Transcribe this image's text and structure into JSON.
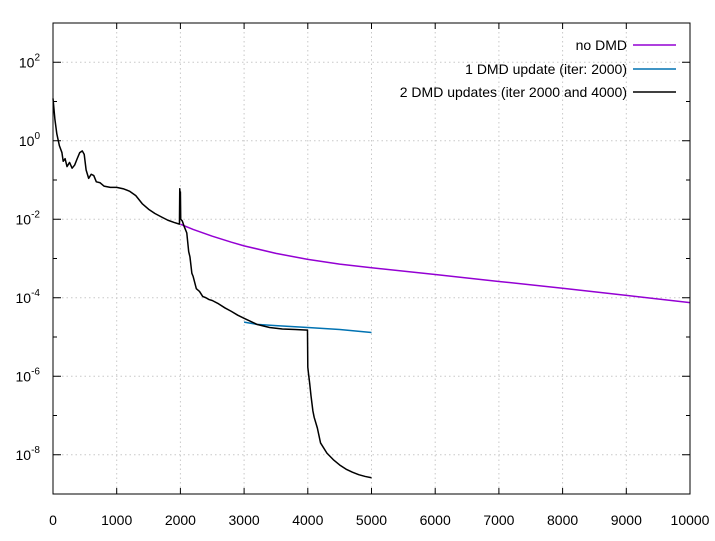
{
  "chart_data": {
    "type": "line",
    "title": "",
    "xlabel": "",
    "ylabel": "",
    "xlim": [
      0,
      10000
    ],
    "ylim": [
      1e-09,
      1000
    ],
    "yscale": "log",
    "grid": true,
    "legend_position": "top-right",
    "x_ticks": [
      {
        "value": 0,
        "label": "0"
      },
      {
        "value": 1000,
        "label": "1000"
      },
      {
        "value": 2000,
        "label": "2000"
      },
      {
        "value": 3000,
        "label": "3000"
      },
      {
        "value": 4000,
        "label": "4000"
      },
      {
        "value": 5000,
        "label": "5000"
      },
      {
        "value": 6000,
        "label": "6000"
      },
      {
        "value": 7000,
        "label": "7000"
      },
      {
        "value": 8000,
        "label": "8000"
      },
      {
        "value": 9000,
        "label": "9000"
      },
      {
        "value": 10000,
        "label": "10000"
      }
    ],
    "y_ticks": [
      {
        "value": 1e-08,
        "base": "10",
        "exp": "-8"
      },
      {
        "value": 1e-06,
        "base": "10",
        "exp": "-6"
      },
      {
        "value": 0.0001,
        "base": "10",
        "exp": "-4"
      },
      {
        "value": 0.01,
        "base": "10",
        "exp": "-2"
      },
      {
        "value": 1,
        "base": "10",
        "exp": "0"
      },
      {
        "value": 100,
        "base": "10",
        "exp": "2"
      }
    ],
    "series": [
      {
        "name": "no DMD",
        "color": "#9400d3",
        "points": [
          [
            2000,
            0.0075
          ],
          [
            2200,
            0.0055
          ],
          [
            2500,
            0.0037
          ],
          [
            2800,
            0.0026
          ],
          [
            3000,
            0.0021
          ],
          [
            3500,
            0.00135
          ],
          [
            4000,
            0.00095
          ],
          [
            4500,
            0.00072
          ],
          [
            5000,
            0.00058
          ],
          [
            6000,
            0.00039
          ],
          [
            7000,
            0.00026
          ],
          [
            8000,
            0.000175
          ],
          [
            9000,
            0.000115
          ],
          [
            10000,
            7.5e-05
          ]
        ]
      },
      {
        "name": "1 DMD update (iter: 2000)",
        "color": "#0072b2",
        "points": [
          [
            3000,
            2.4e-05
          ],
          [
            3200,
            2.1e-05
          ],
          [
            3500,
            1.95e-05
          ],
          [
            4000,
            1.75e-05
          ],
          [
            4500,
            1.55e-05
          ],
          [
            5000,
            1.3e-05
          ]
        ]
      },
      {
        "name": "2 DMD updates (iter 2000 and 4000)",
        "color": "#000000",
        "points": [
          [
            0,
            12
          ],
          [
            30,
            3.5
          ],
          [
            60,
            1.5
          ],
          [
            100,
            0.75
          ],
          [
            140,
            0.5
          ],
          [
            160,
            0.3
          ],
          [
            190,
            0.35
          ],
          [
            220,
            0.22
          ],
          [
            260,
            0.28
          ],
          [
            300,
            0.2
          ],
          [
            340,
            0.24
          ],
          [
            380,
            0.35
          ],
          [
            420,
            0.5
          ],
          [
            460,
            0.55
          ],
          [
            490,
            0.45
          ],
          [
            520,
            0.18
          ],
          [
            560,
            0.11
          ],
          [
            600,
            0.14
          ],
          [
            640,
            0.13
          ],
          [
            680,
            0.09
          ],
          [
            740,
            0.085
          ],
          [
            800,
            0.07
          ],
          [
            900,
            0.065
          ],
          [
            1000,
            0.065
          ],
          [
            1100,
            0.06
          ],
          [
            1200,
            0.052
          ],
          [
            1300,
            0.04
          ],
          [
            1400,
            0.025
          ],
          [
            1500,
            0.018
          ],
          [
            1600,
            0.014
          ],
          [
            1700,
            0.0115
          ],
          [
            1800,
            0.0095
          ],
          [
            1900,
            0.0083
          ],
          [
            1985,
            0.0075
          ],
          [
            1990,
            0.06
          ],
          [
            1995,
            0.03
          ],
          [
            2000,
            0.05
          ],
          [
            2005,
            0.01
          ],
          [
            2030,
            0.009
          ],
          [
            2060,
            0.0065
          ],
          [
            2100,
            0.0045
          ],
          [
            2130,
            0.0015
          ],
          [
            2150,
            0.0011
          ],
          [
            2180,
            0.00042
          ],
          [
            2200,
            0.00035
          ],
          [
            2250,
            0.00017
          ],
          [
            2300,
            0.000145
          ],
          [
            2350,
            0.000108
          ],
          [
            2400,
            0.0001
          ],
          [
            2450,
            9e-05
          ],
          [
            2500,
            8.5e-05
          ],
          [
            2600,
            7e-05
          ],
          [
            2700,
            5.5e-05
          ],
          [
            2800,
            4.5e-05
          ],
          [
            2900,
            3.6e-05
          ],
          [
            3000,
            3e-05
          ],
          [
            3200,
            2.1e-05
          ],
          [
            3400,
            1.75e-05
          ],
          [
            3600,
            1.6e-05
          ],
          [
            3800,
            1.55e-05
          ],
          [
            3995,
            1.5e-05
          ],
          [
            4000,
            1.7e-06
          ],
          [
            4010,
            1.2e-06
          ],
          [
            4030,
            6.5e-07
          ],
          [
            4050,
            3.2e-07
          ],
          [
            4080,
            1.3e-07
          ],
          [
            4100,
            9e-08
          ],
          [
            4150,
            4.8e-08
          ],
          [
            4200,
            2e-08
          ],
          [
            4300,
            1.1e-08
          ],
          [
            4400,
            7.5e-09
          ],
          [
            4500,
            5.5e-09
          ],
          [
            4600,
            4.3e-09
          ],
          [
            4700,
            3.6e-09
          ],
          [
            4800,
            3.1e-09
          ],
          [
            4900,
            2.8e-09
          ],
          [
            5000,
            2.6e-09
          ]
        ]
      }
    ]
  }
}
